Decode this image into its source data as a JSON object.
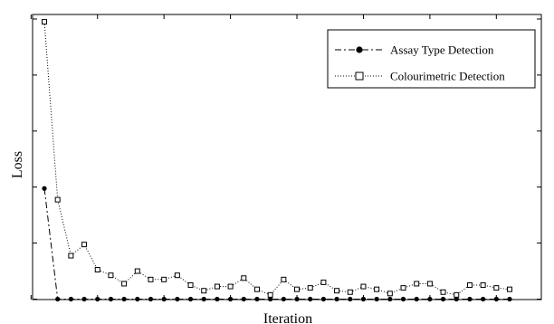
{
  "chart_data": {
    "type": "line",
    "title": "",
    "xlabel": "Iteration",
    "ylabel": "Loss",
    "xlim": [
      0,
      37
    ],
    "ylim": [
      0,
      100
    ],
    "x_ticks": [
      0,
      5,
      10,
      15,
      20,
      25,
      30,
      35
    ],
    "y_ticks": [
      0,
      20,
      40,
      60,
      80,
      100
    ],
    "tick_labels_shown": false,
    "grid": false,
    "legend_position": "top-right",
    "series": [
      {
        "name": "Assay Type Detection",
        "line_style": "dash-dot",
        "marker": "filled-circle",
        "color": "#000000",
        "x": [
          1,
          2,
          3,
          4,
          5,
          6,
          7,
          8,
          9,
          10,
          11,
          12,
          13,
          14,
          15,
          16,
          17,
          18,
          19,
          20,
          21,
          22,
          23,
          24,
          25,
          26,
          27,
          28,
          29,
          30,
          31,
          32,
          33,
          34,
          35,
          36
        ],
        "y": [
          39.5,
          0,
          0,
          0,
          0,
          0,
          0,
          0,
          0,
          0,
          0,
          0,
          0,
          0,
          0,
          0,
          0,
          0,
          0,
          0,
          0,
          0,
          0,
          0,
          0,
          0,
          0,
          0,
          0,
          0,
          0,
          0,
          0,
          0,
          0,
          0
        ]
      },
      {
        "name": "Colourimetric Detection",
        "line_style": "dotted",
        "marker": "open-square",
        "color": "#000000",
        "x": [
          1,
          2,
          3,
          4,
          5,
          6,
          7,
          8,
          9,
          10,
          11,
          12,
          13,
          14,
          15,
          16,
          17,
          18,
          19,
          20,
          21,
          22,
          23,
          24,
          25,
          26,
          27,
          28,
          29,
          30,
          31,
          32,
          33,
          34,
          35,
          36
        ],
        "y": [
          99,
          35.5,
          15.5,
          19.5,
          10.5,
          8.5,
          5.5,
          10,
          7,
          7,
          8.5,
          5,
          3,
          4.5,
          4.5,
          7.5,
          3.5,
          1.5,
          7,
          3.5,
          4,
          6,
          3,
          2.5,
          4.5,
          3.5,
          2,
          4,
          5.5,
          5.5,
          2.5,
          1.5,
          5,
          5,
          4,
          3.5
        ]
      }
    ]
  }
}
